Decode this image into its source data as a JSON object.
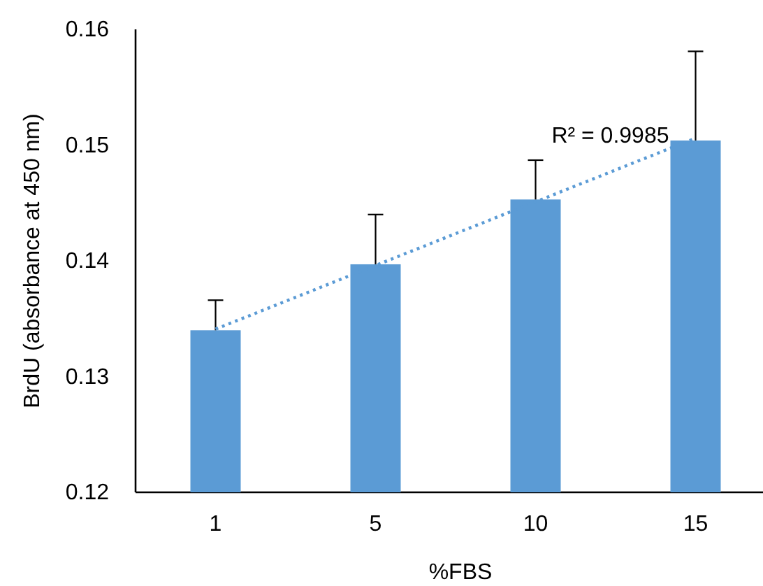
{
  "chart_data": {
    "type": "bar",
    "xlabel": "%FBS",
    "ylabel": "BrdU (absorbance at 450 nm)",
    "categories": [
      "1",
      "5",
      "10",
      "15"
    ],
    "ylim": [
      0.12,
      0.16
    ],
    "yticks": [
      0.12,
      0.13,
      0.14,
      0.15,
      0.16
    ],
    "annotations": [
      {
        "text": "R² = 0.9985",
        "x": "15",
        "y": 0.1506
      }
    ],
    "series": [
      {
        "color": "#5b9bd5",
        "values": [
          0.134,
          0.1397,
          0.1453,
          0.1504
        ],
        "errors": [
          [
            0.134,
            0.1366
          ],
          [
            0.1397,
            0.144
          ],
          [
            0.1453,
            0.1487
          ],
          [
            0.1504,
            0.1581
          ]
        ]
      },
      {
        "type": "line",
        "color": "#5b9bd5",
        "x": [
          "1",
          "15"
        ],
        "values": [
          0.1341,
          0.1506
        ],
        "line_style": "dotted",
        "marker": "none"
      }
    ]
  }
}
